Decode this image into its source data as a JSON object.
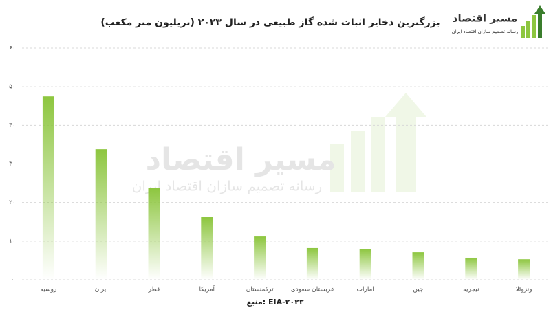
{
  "chart_data": {
    "type": "bar",
    "title": "بزرگترین ذخایر اثبات شده گاز طبیعی در سال ۲۰۲۳ (تریلیون متر مکعب)",
    "source": "منبع: EIA-۲۰۲۳",
    "categories": [
      "روسیه",
      "ایران",
      "قطر",
      "آمریکا",
      "ترکمنستان",
      "عربستان سعودی",
      "امارات",
      "چین",
      "نیجریه",
      "ونزوئلا"
    ],
    "values": [
      47.5,
      33.8,
      23.7,
      16.2,
      11.2,
      8.2,
      8.0,
      7.1,
      5.7,
      5.3
    ],
    "color": "#8dc63f",
    "ylim": [
      0,
      60
    ],
    "yticks": [
      {
        "value": 0,
        "label": "۰"
      },
      {
        "value": 10,
        "label": "۱۰"
      },
      {
        "value": 20,
        "label": "۲۰"
      },
      {
        "value": 30,
        "label": "۳۰"
      },
      {
        "value": 40,
        "label": "۴۰"
      },
      {
        "value": 50,
        "label": "۵۰"
      },
      {
        "value": 60,
        "label": "۶۰"
      }
    ],
    "grid": true
  },
  "logo": {
    "name": "مسیر اقتصاد",
    "tagline": "رسانه تصمیم سازان اقتصاد ایران"
  }
}
